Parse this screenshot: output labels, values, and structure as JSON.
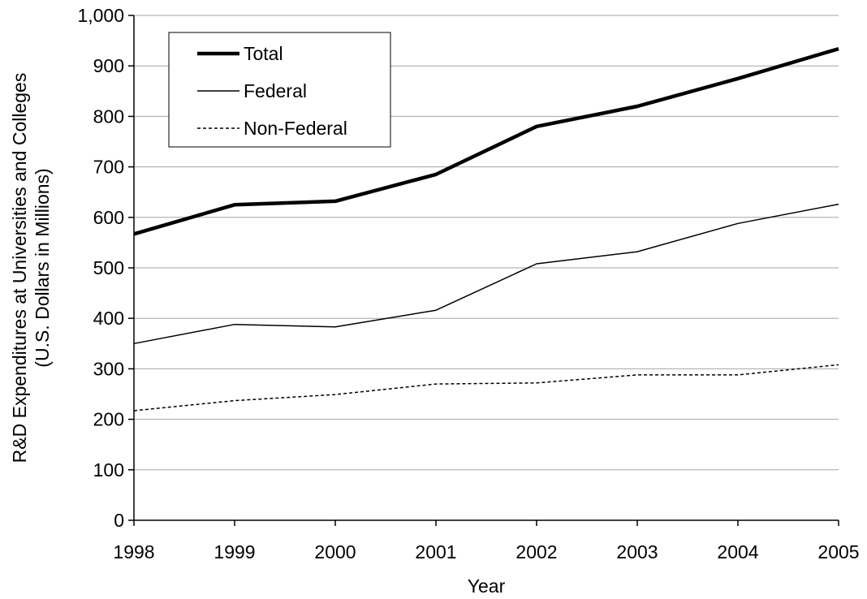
{
  "chart_data": {
    "type": "line",
    "title": "",
    "xlabel": "Year",
    "ylabel_line1": "R&D Expenditures at Universities and Colleges",
    "ylabel_line2": "(U.S. Dollars in Millions)",
    "x": [
      1998,
      1999,
      2000,
      2001,
      2002,
      2003,
      2004,
      2005
    ],
    "ylim": [
      0,
      1000
    ],
    "yticks": [
      0,
      100,
      200,
      300,
      400,
      500,
      600,
      700,
      800,
      900,
      1000
    ],
    "ytick_labels": [
      "0",
      "100",
      "200",
      "300",
      "400",
      "500",
      "600",
      "700",
      "800",
      "900",
      "1,000"
    ],
    "grid": true,
    "legend_position": "top-left",
    "series": [
      {
        "name": "Total",
        "style": "thick",
        "color": "#000000",
        "values": [
          567,
          625,
          632,
          685,
          780,
          820,
          875,
          934
        ]
      },
      {
        "name": "Federal",
        "style": "thin",
        "color": "#000000",
        "values": [
          350,
          388,
          383,
          416,
          508,
          532,
          588,
          626
        ]
      },
      {
        "name": "Non-Federal",
        "style": "dashed",
        "color": "#000000",
        "values": [
          217,
          237,
          249,
          270,
          272,
          288,
          288,
          308
        ]
      }
    ]
  }
}
